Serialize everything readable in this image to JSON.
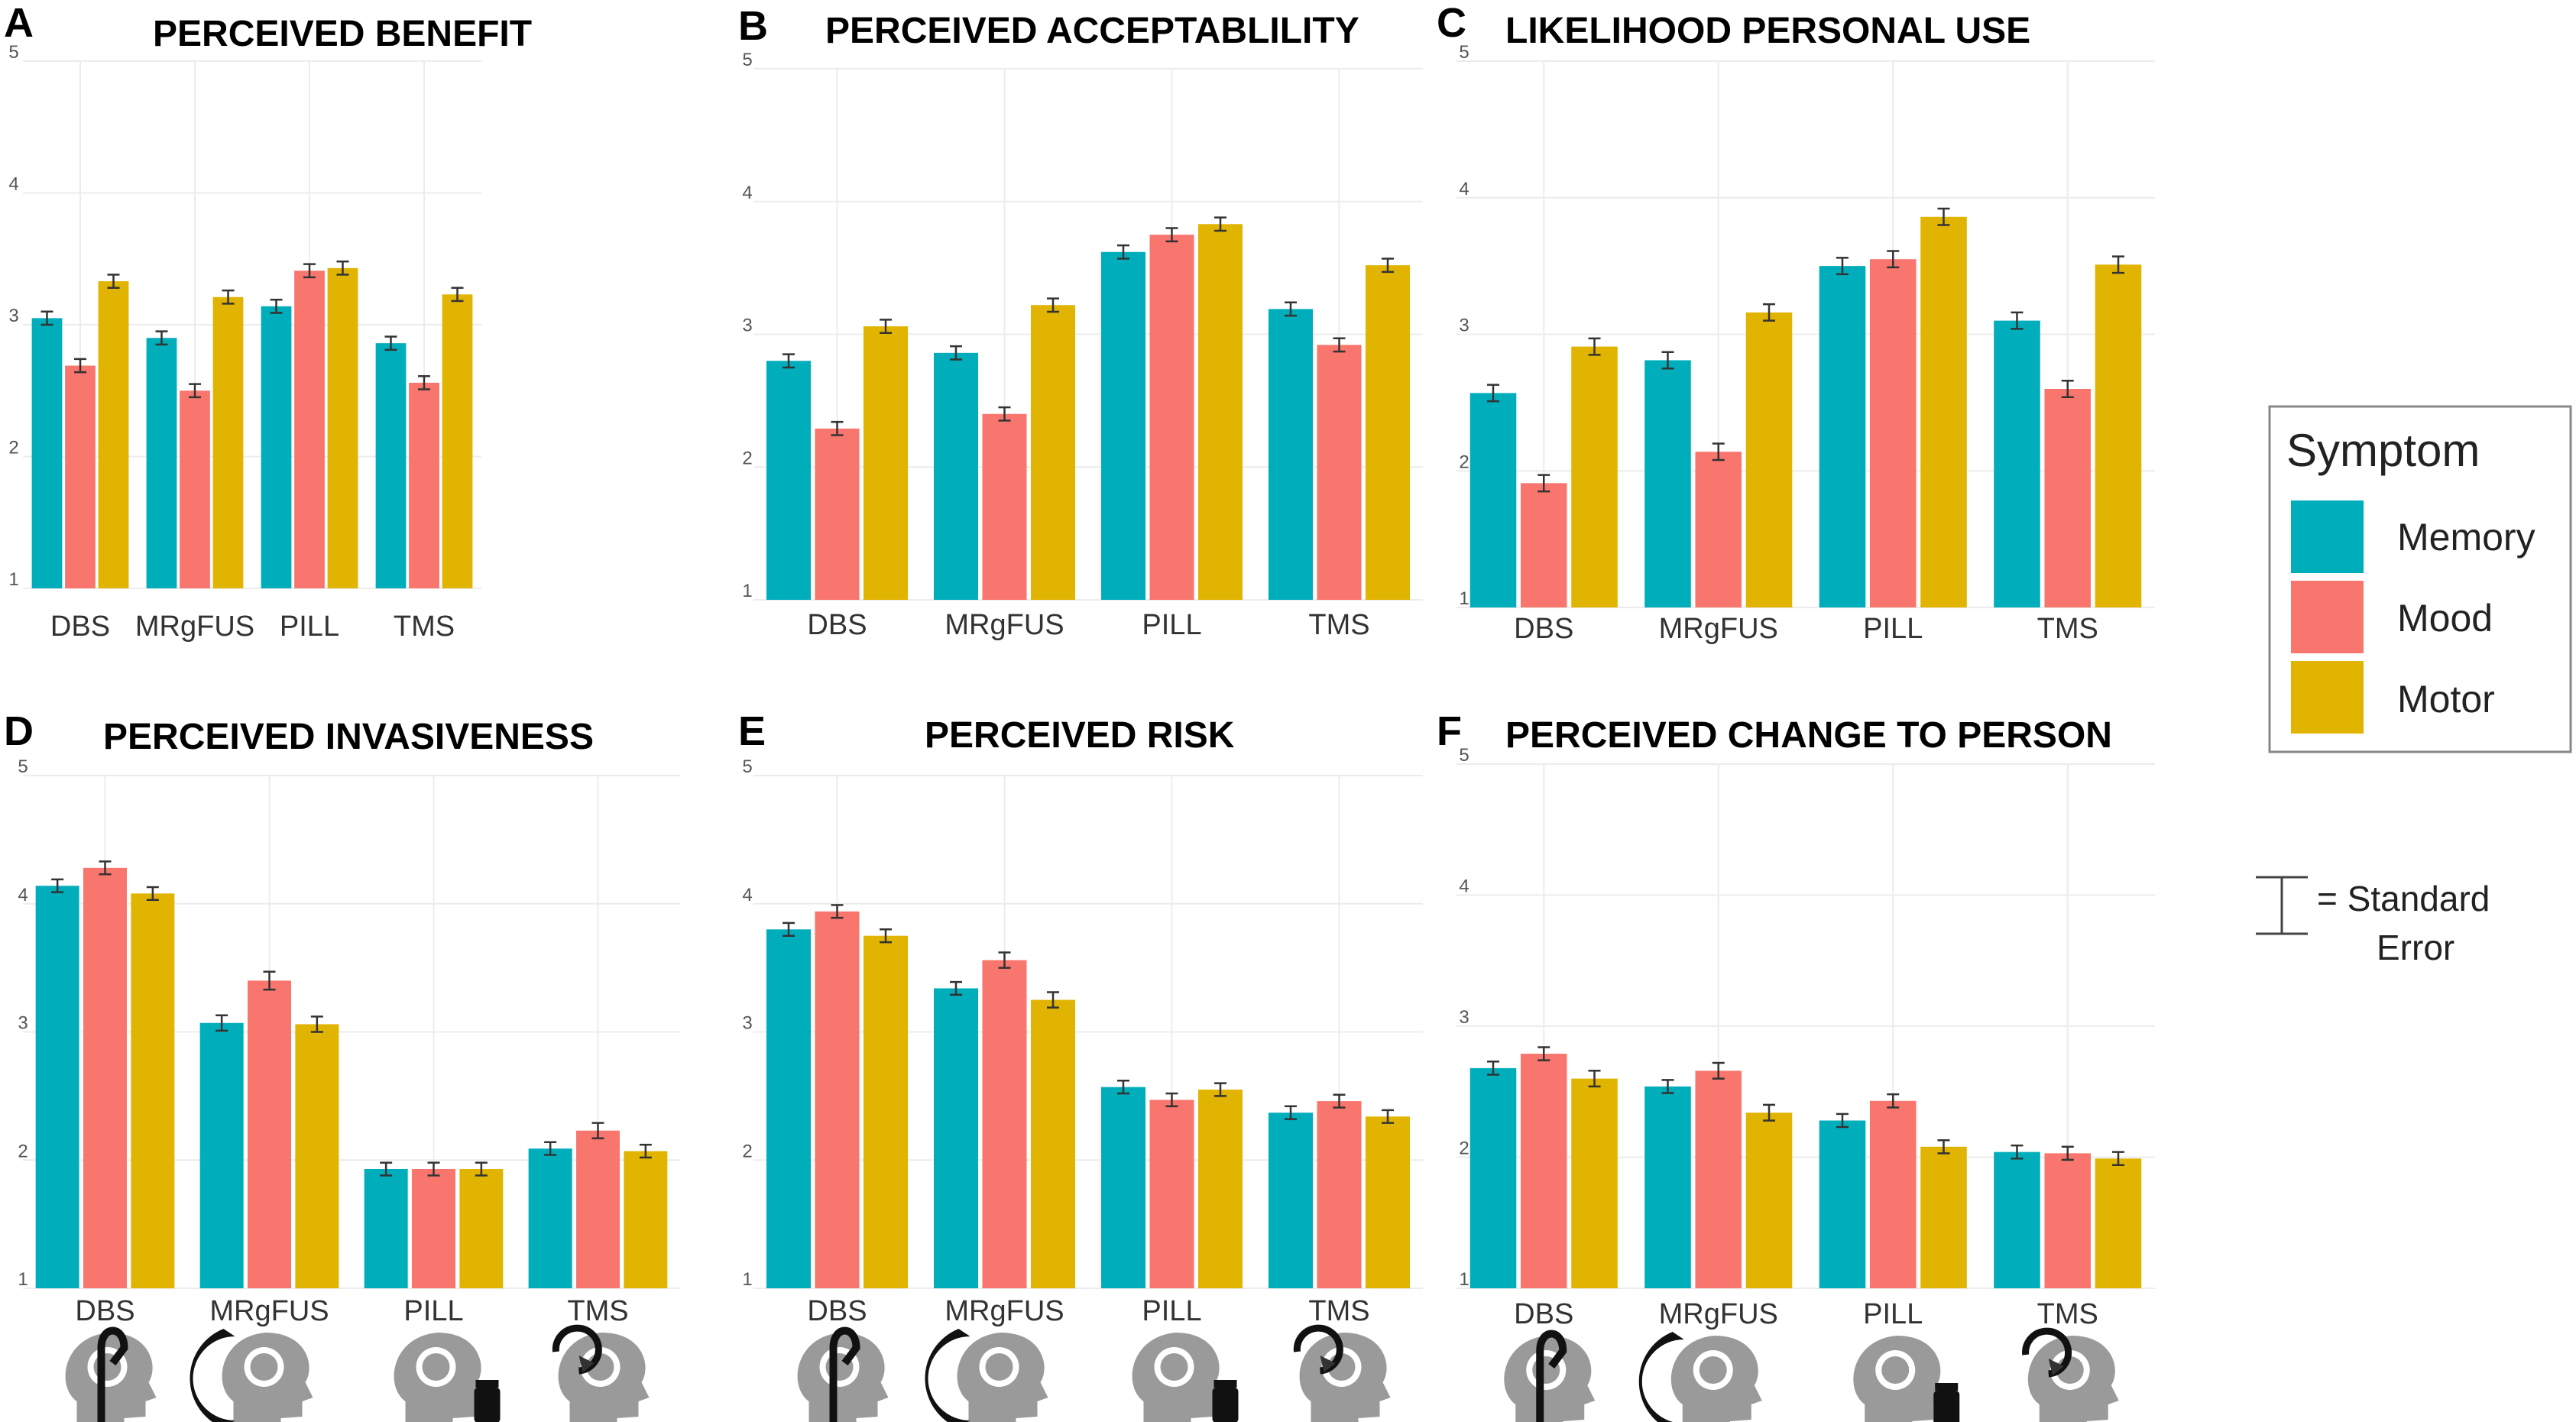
{
  "colors": {
    "Memory": "#00aebb",
    "Mood": "#f8766d",
    "Motor": "#e0b400",
    "grid": "#ececec",
    "errorbar": "#333333",
    "icon": "#9a9a9a"
  },
  "icons": [
    "dbs-electrode-icon",
    "mrgfus-ultrasound-icon",
    "pill-bottle-icon",
    "tms-magnet-icon"
  ],
  "legend": {
    "title": "Symptom",
    "items": [
      {
        "name": "Memory",
        "color": "#00aebb"
      },
      {
        "name": "Mood",
        "color": "#f8766d"
      },
      {
        "name": "Motor",
        "color": "#e0b400"
      }
    ]
  },
  "se_legend": {
    "line1": "= Standard",
    "line2": "Error"
  },
  "chart_data": [
    {
      "panel": "A",
      "type": "bar",
      "title": "PERCEIVED BENEFIT",
      "ylim": [
        1,
        5
      ],
      "yticks": [
        1,
        2,
        3,
        4,
        5
      ],
      "categories": [
        "DBS",
        "MRgFUS",
        "PILL",
        "TMS"
      ],
      "legend": "right",
      "series": [
        {
          "name": "Memory",
          "values": [
            3.05,
            2.9,
            3.14,
            2.86
          ],
          "se": [
            0.05,
            0.05,
            0.05,
            0.05
          ]
        },
        {
          "name": "Mood",
          "values": [
            2.69,
            2.5,
            3.41,
            2.56
          ],
          "se": [
            0.05,
            0.05,
            0.05,
            0.05
          ]
        },
        {
          "name": "Motor",
          "values": [
            3.33,
            3.21,
            3.43,
            3.23
          ],
          "se": [
            0.05,
            0.05,
            0.05,
            0.05
          ]
        }
      ]
    },
    {
      "panel": "B",
      "type": "bar",
      "title": "PERCEIVED ACCEPTABLILITY",
      "ylim": [
        1,
        5
      ],
      "yticks": [
        1,
        2,
        3,
        4,
        5
      ],
      "categories": [
        "DBS",
        "MRgFUS",
        "PILL",
        "TMS"
      ],
      "legend": "right",
      "series": [
        {
          "name": "Memory",
          "values": [
            2.8,
            2.86,
            3.62,
            3.19
          ],
          "se": [
            0.05,
            0.05,
            0.05,
            0.05
          ]
        },
        {
          "name": "Mood",
          "values": [
            2.29,
            2.4,
            3.75,
            2.92
          ],
          "se": [
            0.05,
            0.05,
            0.05,
            0.05
          ]
        },
        {
          "name": "Motor",
          "values": [
            3.06,
            3.22,
            3.83,
            3.52
          ],
          "se": [
            0.05,
            0.05,
            0.05,
            0.05
          ]
        }
      ]
    },
    {
      "panel": "C",
      "type": "bar",
      "title": "LIKELIHOOD PERSONAL USE",
      "ylim": [
        1,
        5
      ],
      "yticks": [
        1,
        2,
        3,
        4,
        5
      ],
      "categories": [
        "DBS",
        "MRgFUS",
        "PILL",
        "TMS"
      ],
      "legend": "right",
      "series": [
        {
          "name": "Memory",
          "values": [
            2.57,
            2.81,
            3.5,
            3.1
          ],
          "se": [
            0.06,
            0.06,
            0.06,
            0.06
          ]
        },
        {
          "name": "Mood",
          "values": [
            1.91,
            2.14,
            3.55,
            2.6
          ],
          "se": [
            0.06,
            0.06,
            0.06,
            0.06
          ]
        },
        {
          "name": "Motor",
          "values": [
            2.91,
            3.16,
            3.86,
            3.51
          ],
          "se": [
            0.06,
            0.06,
            0.06,
            0.06
          ]
        }
      ]
    },
    {
      "panel": "D",
      "type": "bar",
      "title": "PERCEIVED INVASIVENESS",
      "ylim": [
        1,
        5
      ],
      "yticks": [
        1,
        2,
        3,
        4,
        5
      ],
      "categories": [
        "DBS",
        "MRgFUS",
        "PILL",
        "TMS"
      ],
      "legend": "right",
      "series": [
        {
          "name": "Memory",
          "values": [
            4.14,
            3.07,
            1.93,
            2.09
          ],
          "se": [
            0.05,
            0.06,
            0.05,
            0.05
          ]
        },
        {
          "name": "Mood",
          "values": [
            4.28,
            3.4,
            1.93,
            2.23
          ],
          "se": [
            0.05,
            0.07,
            0.05,
            0.06
          ]
        },
        {
          "name": "Motor",
          "values": [
            4.08,
            3.06,
            1.93,
            2.07
          ],
          "se": [
            0.05,
            0.06,
            0.05,
            0.05
          ]
        }
      ]
    },
    {
      "panel": "E",
      "type": "bar",
      "title": "PERCEIVED RISK",
      "ylim": [
        1,
        5
      ],
      "yticks": [
        1,
        2,
        3,
        4,
        5
      ],
      "categories": [
        "DBS",
        "MRgFUS",
        "PILL",
        "TMS"
      ],
      "legend": "right",
      "series": [
        {
          "name": "Memory",
          "values": [
            3.8,
            3.34,
            2.57,
            2.37
          ],
          "se": [
            0.05,
            0.05,
            0.05,
            0.05
          ]
        },
        {
          "name": "Mood",
          "values": [
            3.94,
            3.56,
            2.47,
            2.46
          ],
          "se": [
            0.05,
            0.06,
            0.05,
            0.05
          ]
        },
        {
          "name": "Motor",
          "values": [
            3.75,
            3.25,
            2.55,
            2.34
          ],
          "se": [
            0.05,
            0.06,
            0.05,
            0.05
          ]
        }
      ]
    },
    {
      "panel": "F",
      "type": "bar",
      "title": "PERCEIVED CHANGE TO PERSON",
      "ylim": [
        1,
        5
      ],
      "yticks": [
        1,
        2,
        3,
        4,
        5
      ],
      "categories": [
        "DBS",
        "MRgFUS",
        "PILL",
        "TMS"
      ],
      "legend": "right",
      "series": [
        {
          "name": "Memory",
          "values": [
            2.68,
            2.54,
            2.28,
            2.04
          ],
          "se": [
            0.05,
            0.05,
            0.05,
            0.05
          ]
        },
        {
          "name": "Mood",
          "values": [
            2.79,
            2.66,
            2.43,
            2.03
          ],
          "se": [
            0.05,
            0.06,
            0.05,
            0.05
          ]
        },
        {
          "name": "Motor",
          "values": [
            2.6,
            2.34,
            2.08,
            1.99
          ],
          "se": [
            0.06,
            0.06,
            0.05,
            0.05
          ]
        }
      ]
    }
  ]
}
